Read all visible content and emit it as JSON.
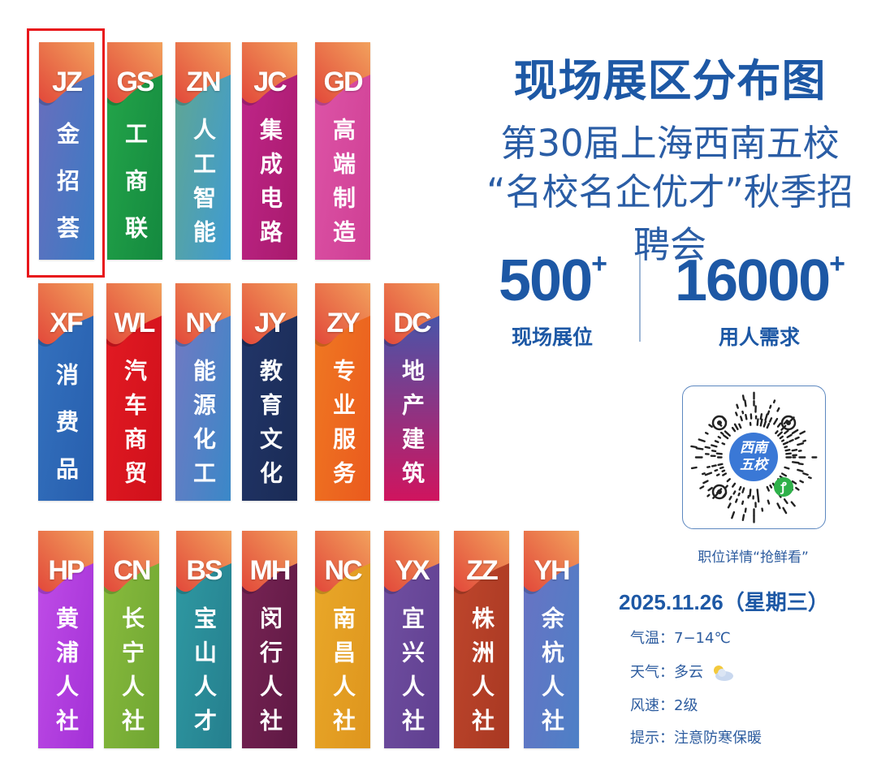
{
  "title": "现场展区分布图",
  "subtitle_line1": "第30届上海西南五校",
  "subtitle_line2": "“名校名企优才”秋季招聘会",
  "stats": [
    {
      "value": "500",
      "suffix": "+",
      "label": "现场展位"
    },
    {
      "value": "16000",
      "suffix": "+",
      "label": "用人需求"
    }
  ],
  "qr": {
    "logo_text_1": "西南",
    "logo_text_2": "五校",
    "caption": "职位详情“抢鲜看”",
    "mini_program_icon": "wechat-mini-program-icon"
  },
  "date": "2025.11.26（星期三）",
  "info": [
    {
      "label": "气温：",
      "value": "7−14℃"
    },
    {
      "label": "天气：",
      "value": "多云",
      "icon": "partly-cloudy-icon"
    },
    {
      "label": "风速：",
      "value": "2级"
    },
    {
      "label": "提示：",
      "value": "注意防寒保暖"
    }
  ],
  "selected_banner": "JZ",
  "colors": {
    "primary": "#1d58a5",
    "highlight": "#e8161b",
    "cap_top": "#e2483a",
    "cap_bottom": "#f2a15c"
  },
  "rows": [
    [
      {
        "code": "JZ",
        "name": "金招荟",
        "color": [
          "#6b6dbd",
          "#3a7bc4"
        ]
      },
      {
        "code": "GS",
        "name": "工商联",
        "color": [
          "#24a64a",
          "#14893f"
        ]
      },
      {
        "code": "ZN",
        "name": "人工智能",
        "color": [
          "#62a78f",
          "#3e9bd3"
        ]
      },
      {
        "code": "JC",
        "name": "集成电路",
        "color": [
          "#c0268a",
          "#a81a6c"
        ]
      },
      {
        "code": "GD",
        "name": "高端制造",
        "color": [
          "#de55a8",
          "#cf3f94"
        ]
      }
    ],
    [
      {
        "code": "XF",
        "name": "消费品",
        "color": [
          "#3572bf",
          "#275fae"
        ]
      },
      {
        "code": "WL",
        "name": "汽车商贸",
        "color": [
          "#e31b23",
          "#d0101b"
        ]
      },
      {
        "code": "NY",
        "name": "能源化工",
        "color": [
          "#7578c2",
          "#3a88c8"
        ]
      },
      {
        "code": "JY",
        "name": "教育文化",
        "color": [
          "#22366a",
          "#1a2b55"
        ]
      },
      {
        "code": "ZY",
        "name": "专业服务",
        "color": [
          "#f07a22",
          "#ea5a1e"
        ]
      },
      {
        "code": "DC",
        "name": "地产建筑",
        "color": [
          "#3160b6",
          "#d0145e"
        ]
      }
    ],
    [
      {
        "code": "HP",
        "name": "黄浦人社",
        "color": [
          "#c14ee8",
          "#a331d6"
        ]
      },
      {
        "code": "CN",
        "name": "长宁人社",
        "color": [
          "#8abd3e",
          "#6fa532"
        ]
      },
      {
        "code": "BS",
        "name": "宝山人才",
        "color": [
          "#2f9aa3",
          "#257f8e"
        ]
      },
      {
        "code": "MH",
        "name": "闵行人社",
        "color": [
          "#7a2556",
          "#5e1843"
        ]
      },
      {
        "code": "NC",
        "name": "南昌人社",
        "color": [
          "#eaa92a",
          "#de951d"
        ]
      },
      {
        "code": "YX",
        "name": "宜兴人社",
        "color": [
          "#7250a3",
          "#5f3f8f"
        ]
      },
      {
        "code": "ZZ",
        "name": "株洲人社",
        "color": [
          "#c0472d",
          "#a83822"
        ]
      },
      {
        "code": "YH",
        "name": "余杭人社",
        "color": [
          "#6a72c4",
          "#4d80c6"
        ]
      }
    ]
  ]
}
